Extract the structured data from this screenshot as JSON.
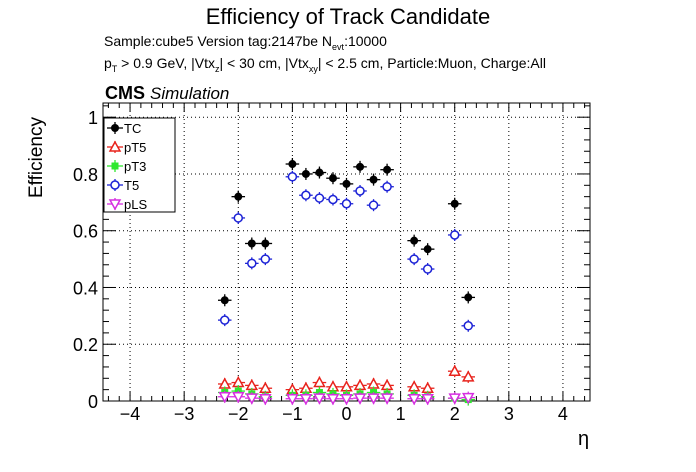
{
  "chart_data": {
    "type": "scatter",
    "title": "Efficiency of Track Candidate",
    "info_line1": "Sample:cube5   Version tag:2147be  N",
    "info_line1_sub": "evt",
    "info_line1_end": ":10000",
    "info_line2_parts": [
      "p",
      "T",
      " > 0.9 GeV, |Vtx",
      "z",
      "| < 30 cm, |Vtx",
      "xy",
      "| < 2.5 cm, Particle:Muon, Charge:All"
    ],
    "cms_label": "CMS",
    "simulation_label": "Simulation",
    "xlabel": "η",
    "ylabel": "Efficiency",
    "xlim": [
      -4.5,
      4.5
    ],
    "ylim": [
      0,
      1.05
    ],
    "xticks": [
      -4,
      -3,
      -2,
      -1,
      0,
      1,
      2,
      3,
      4
    ],
    "yticks": [
      0,
      0.2,
      0.4,
      0.6,
      0.8,
      1
    ],
    "xtick_labels": [
      "−4",
      "−3",
      "−2",
      "−1",
      "0",
      "1",
      "2",
      "3",
      "4"
    ],
    "ytick_labels": [
      "0",
      "0.2",
      "0.4",
      "0.6",
      "0.8",
      "1"
    ],
    "grid": true,
    "legend_position": "top-left",
    "bin_width": 0.25,
    "x": [
      -2.25,
      -2.0,
      -1.75,
      -1.5,
      -1.0,
      -0.75,
      -0.5,
      -0.25,
      0.0,
      0.25,
      0.5,
      0.75,
      1.0,
      1.25,
      1.5,
      1.75,
      2.0,
      2.25
    ],
    "series": [
      {
        "name": "TC",
        "marker": "filled-circle",
        "color": "#000000",
        "values": [
          0.355,
          0.72,
          0.555,
          0.555,
          0.835,
          0.8,
          0.805,
          0.785,
          0.765,
          0.825,
          0.78,
          0.815,
          0.565,
          0.535,
          0.695,
          0.365
        ]
      },
      {
        "name": "pT5",
        "marker": "open-triangle",
        "color": "#e8231c",
        "values": [
          0.06,
          0.065,
          0.055,
          0.045,
          0.04,
          0.045,
          0.065,
          0.05,
          0.05,
          0.055,
          0.06,
          0.055,
          0.05,
          0.045,
          0.105,
          0.085
        ]
      },
      {
        "name": "pT3",
        "marker": "filled-square",
        "color": "#2ee82e",
        "values": [
          0.03,
          0.035,
          0.025,
          0.015,
          0.02,
          0.02,
          0.03,
          0.025,
          0.02,
          0.025,
          0.03,
          0.025,
          0.02,
          0.015,
          0.01,
          0.005
        ]
      },
      {
        "name": "T5",
        "marker": "open-circle",
        "color": "#1c22d6",
        "values": [
          0.285,
          0.645,
          0.485,
          0.5,
          0.79,
          0.725,
          0.715,
          0.71,
          0.695,
          0.74,
          0.69,
          0.755,
          0.5,
          0.465,
          0.585,
          0.265
        ]
      },
      {
        "name": "pLS",
        "marker": "open-triangle-down",
        "color": "#d62ee0",
        "values": [
          0.015,
          0.015,
          0.01,
          0.008,
          0.008,
          0.008,
          0.01,
          0.008,
          0.008,
          0.01,
          0.01,
          0.01,
          0.008,
          0.008,
          0.01,
          0.012
        ]
      }
    ],
    "points_x_index": [
      0,
      1,
      2,
      3,
      4,
      5,
      6,
      7,
      8,
      9,
      10,
      11,
      13,
      14,
      16,
      17
    ]
  }
}
